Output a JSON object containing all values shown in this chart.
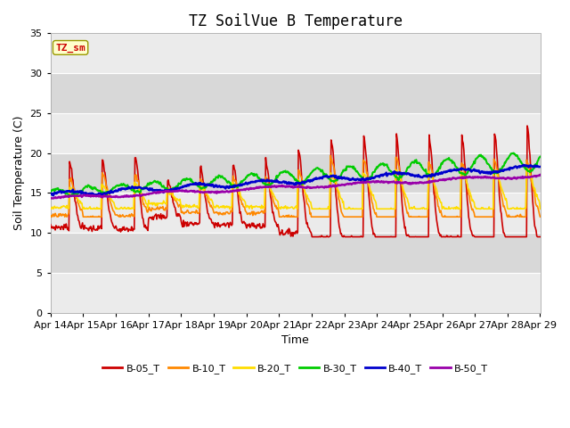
{
  "title": "TZ SoilVue B Temperature",
  "xlabel": "Time",
  "ylabel": "Soil Temperature (C)",
  "ylim": [
    0,
    35
  ],
  "yticks": [
    0,
    5,
    10,
    15,
    20,
    25,
    30,
    35
  ],
  "x_labels": [
    "Apr 14",
    "Apr 15",
    "Apr 16",
    "Apr 17",
    "Apr 18",
    "Apr 19",
    "Apr 20",
    "Apr 21",
    "Apr 22",
    "Apr 23",
    "Apr 24",
    "Apr 25",
    "Apr 26",
    "Apr 27",
    "Apr 28",
    "Apr 29"
  ],
  "legend_labels": [
    "B-05_T",
    "B-10_T",
    "B-20_T",
    "B-30_T",
    "B-40_T",
    "B-50_T"
  ],
  "series_colors": [
    "#cc0000",
    "#ff8800",
    "#ffdd00",
    "#00cc00",
    "#0000cc",
    "#9900aa"
  ],
  "annotation_text": "TZ_sm",
  "annotation_color": "#cc0000",
  "annotation_bg": "#ffffcc",
  "annotation_border": "#999900",
  "plot_bg_light": "#ebebeb",
  "plot_bg_dark": "#d8d8d8",
  "grid_line_color": "#ffffff",
  "title_fontsize": 12,
  "axis_fontsize": 8,
  "label_fontsize": 9,
  "figsize": [
    6.4,
    4.8
  ],
  "dpi": 100
}
